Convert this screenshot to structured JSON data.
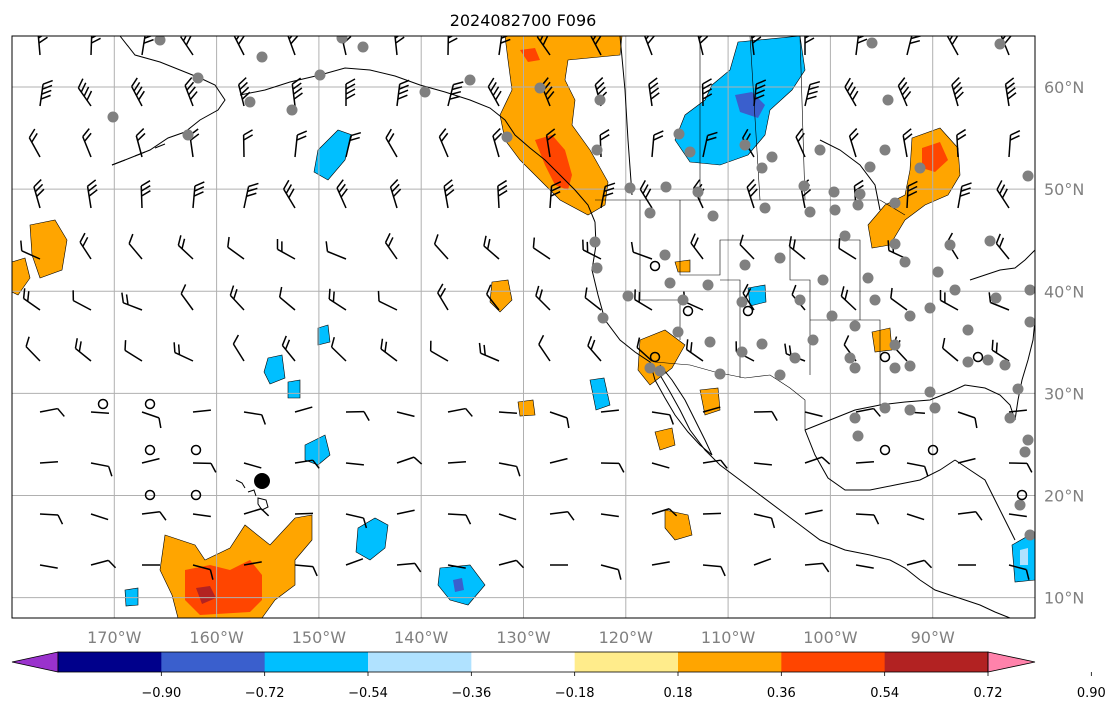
{
  "title": "2024082700 F096",
  "map": {
    "region": "North Pacific and North America",
    "lon_range": [
      -180,
      -80
    ],
    "lat_range": [
      8,
      65
    ],
    "lon_ticks": [
      {
        "value": -170,
        "label": "170°W"
      },
      {
        "value": -160,
        "label": "160°W"
      },
      {
        "value": -150,
        "label": "150°W"
      },
      {
        "value": -140,
        "label": "140°W"
      },
      {
        "value": -130,
        "label": "130°W"
      },
      {
        "value": -120,
        "label": "120°W"
      },
      {
        "value": -110,
        "label": "110°W"
      },
      {
        "value": -100,
        "label": "100°W"
      },
      {
        "value": -90,
        "label": "90°W"
      }
    ],
    "lat_ticks": [
      {
        "value": 60,
        "label": "60°N"
      },
      {
        "value": 50,
        "label": "50°N"
      },
      {
        "value": 40,
        "label": "40°N"
      },
      {
        "value": 30,
        "label": "30°N"
      },
      {
        "value": 20,
        "label": "20°N"
      },
      {
        "value": 10,
        "label": "10°N"
      }
    ],
    "gridlines": true,
    "colors": {
      "gridline": "#b0b0b0",
      "coastline": "#000000",
      "tick_label": "#808080",
      "station_marker": "#808080"
    }
  },
  "colorbar": {
    "ticks": [
      "−0.90",
      "−0.72",
      "−0.54",
      "−0.36",
      "−0.18",
      "0.18",
      "0.36",
      "0.54",
      "0.72",
      "0.90"
    ],
    "colors": [
      "#9a32cd",
      "#00008b",
      "#3a5fcd",
      "#00bfff",
      "#b0e2ff",
      "#ffffff",
      "#ffec8b",
      "#ffa500",
      "#ff4500",
      "#b22222",
      "#ff82ab"
    ],
    "extend": "both"
  },
  "shaded_regions": [
    {
      "name": "alaska-bc-positive",
      "max_level": "0.72+"
    },
    {
      "name": "alberta-negative",
      "min_level": "-0.72"
    },
    {
      "name": "ontario-positive",
      "max_level": "0.72+"
    },
    {
      "name": "hawaii-south-positive",
      "max_level": "0.90"
    }
  ]
}
